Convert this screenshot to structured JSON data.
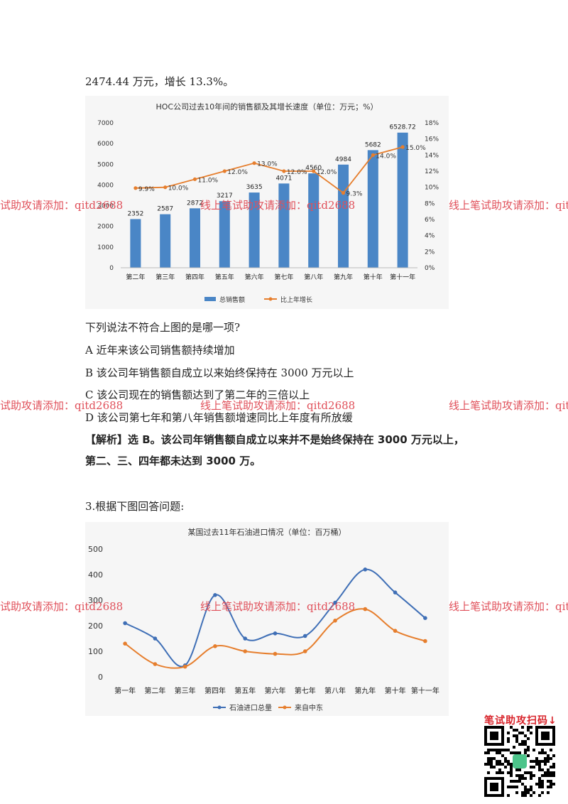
{
  "intro_line": "2474.44 万元，增长 13.3%。",
  "question_text": "下列说法不符合上图的是哪一项?",
  "options": [
    "A 近年来该公司销售额持续增加",
    "B 该公司年销售额自成立以来始终保持在 3000 万元以上",
    "C 该公司现在的销售额达到了第二年的三倍以上",
    "D 该公司第七年和第八年销售额增速同比上年度有所放缓"
  ],
  "analysis_line1": "【解析】选 B。该公司年销售额自成立以来并不是始终保持在 3000 万元以上，",
  "analysis_line2": "第二、三、四年都未达到 3000 万。",
  "q3_text": "3.根据下图回答问题:",
  "watermark_text": "线上笔试助攻请添加：qitd2688",
  "qr_label": "笔试助攻扫码↓",
  "colors": {
    "bar": "#4a86c6",
    "line_orange": "#e67e2d",
    "line_blue": "#3f6fb6",
    "watermark": "#e0505a"
  },
  "chart_data": [
    {
      "type": "bar",
      "title": "HOC公司过去10年间的销售额及其增长速度（单位：万元；%）",
      "categories": [
        "第二年",
        "第三年",
        "第四年",
        "第五年",
        "第六年",
        "第七年",
        "第八年",
        "第九年",
        "第十年",
        "第十一年"
      ],
      "series": [
        {
          "name": "总销售额",
          "type": "bar",
          "axis": "left",
          "values": [
            2352,
            2587,
            2872,
            3217,
            3635,
            4071,
            4560,
            4984,
            5682,
            6528.72
          ],
          "labels": [
            "2352",
            "2587",
            "2872",
            "3217",
            "3635",
            "4071",
            "4560",
            "4984",
            "5682",
            "6528.72"
          ]
        },
        {
          "name": "比上年增长",
          "type": "line",
          "axis": "right",
          "values": [
            9.9,
            10.0,
            11.0,
            12.0,
            13.0,
            12.0,
            12.0,
            9.3,
            14.0,
            15.0
          ],
          "labels": [
            "9.9%",
            "10.0%",
            "11.0%",
            "12.0%",
            "13.0%",
            "12.0%",
            "12.0%",
            "9.3%",
            "14.0%",
            "15.0%"
          ]
        }
      ],
      "ylim": [
        0,
        7000
      ],
      "y_ticks": [
        "0",
        "1000",
        "2000",
        "3000",
        "4000",
        "5000",
        "6000",
        "7000"
      ],
      "y2lim": [
        0,
        18
      ],
      "y2_ticks": [
        "0%",
        "2%",
        "4%",
        "6%",
        "8%",
        "10%",
        "12%",
        "14%",
        "16%",
        "18%"
      ],
      "legend_position": "bottom",
      "grid": false
    },
    {
      "type": "line",
      "title": "某国过去11年石油进口情况（单位：百万桶）",
      "categories": [
        "第一年",
        "第二年",
        "第三年",
        "第四年",
        "第五年",
        "第六年",
        "第七年",
        "第八年",
        "第九年",
        "第十年",
        "第十一年"
      ],
      "series": [
        {
          "name": "石油进口总量",
          "values": [
            210,
            150,
            45,
            320,
            150,
            170,
            160,
            290,
            420,
            330,
            230
          ]
        },
        {
          "name": "来自中东",
          "values": [
            130,
            50,
            40,
            120,
            100,
            90,
            100,
            220,
            265,
            180,
            140
          ]
        }
      ],
      "ylim": [
        0,
        500
      ],
      "y_ticks": [
        "0",
        "100",
        "200",
        "300",
        "400",
        "500"
      ],
      "legend_position": "bottom",
      "grid": false
    }
  ]
}
